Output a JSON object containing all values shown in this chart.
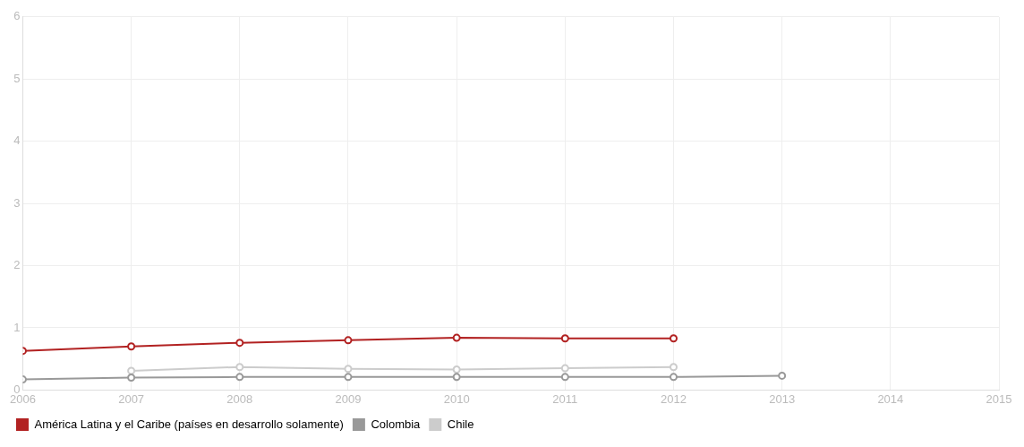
{
  "chart_data": {
    "type": "line",
    "x": [
      2006,
      2007,
      2008,
      2009,
      2010,
      2011,
      2012,
      2013
    ],
    "series": [
      {
        "name": "América Latina y el Caribe (países en desarrollo solamente)",
        "color": "#b22222",
        "values": [
          0.63,
          0.7,
          0.76,
          0.8,
          0.84,
          0.83,
          0.83,
          null
        ]
      },
      {
        "name": "Colombia",
        "color": "#999999",
        "values": [
          0.17,
          0.2,
          0.21,
          0.21,
          0.21,
          0.21,
          0.21,
          0.23
        ]
      },
      {
        "name": "Chile",
        "color": "#cccccc",
        "values": [
          null,
          0.31,
          0.37,
          0.34,
          0.33,
          0.35,
          0.37,
          null
        ]
      }
    ],
    "xlim": [
      2006,
      2015
    ],
    "xticks": [
      2006,
      2007,
      2008,
      2009,
      2010,
      2011,
      2012,
      2013,
      2014,
      2015
    ],
    "ylim": [
      0,
      6
    ],
    "yticks": [
      0,
      1,
      2,
      3,
      4,
      5,
      6
    ],
    "grid": true,
    "legend": "bottom left",
    "marker": "circle",
    "line_style": "solid"
  }
}
